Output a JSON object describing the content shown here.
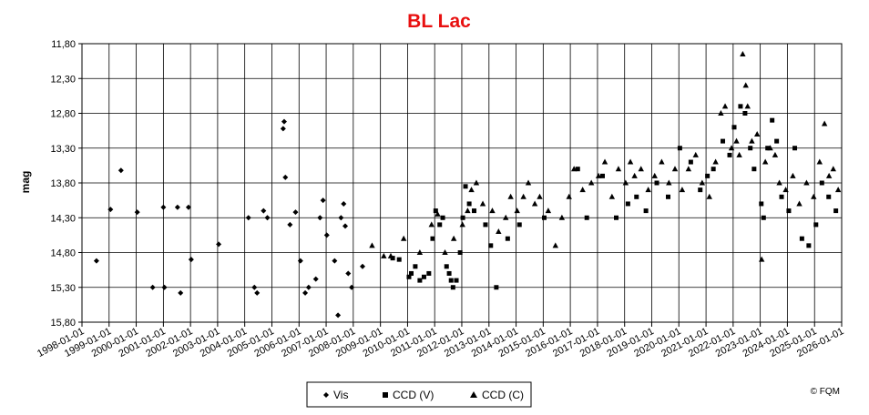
{
  "chart_data": {
    "type": "scatter",
    "title": "BL Lac",
    "ylabel": "mag",
    "xlabel": "",
    "y_inverted": true,
    "ylim": [
      11.8,
      15.8
    ],
    "yticks": [
      "11,80",
      "12,30",
      "12,80",
      "13,30",
      "13,80",
      "14,30",
      "14,80",
      "15,30",
      "15,80"
    ],
    "xlim": [
      "1998-01-01",
      "2026-01-01"
    ],
    "xticks": [
      "1998-01-01",
      "1999-01-01",
      "2000-01-01",
      "2001-01-01",
      "2002-01-01",
      "2003-01-01",
      "2004-01-01",
      "2005-01-01",
      "2006-01-01",
      "2007-01-01",
      "2008-01-01",
      "2009-01-01",
      "2010-01-01",
      "2011-01-01",
      "2012-01-01",
      "2013-01-01",
      "2014-01-01",
      "2015-01-01",
      "2016-01-01",
      "2017-01-01",
      "2018-01-01",
      "2019-01-01",
      "2020-01-01",
      "2021-01-01",
      "2022-01-01",
      "2023-01-01",
      "2024-01-01",
      "2025-01-01",
      "2026-01-01"
    ],
    "grid": true,
    "legend_position": "bottom-center",
    "series": [
      {
        "name": "Vis",
        "marker": "diamond",
        "points": [
          [
            "1998-07-15",
            14.92
          ],
          [
            "1999-01-20",
            14.18
          ],
          [
            "1999-06-10",
            13.62
          ],
          [
            "2000-01-15",
            14.22
          ],
          [
            "2000-08-10",
            15.3
          ],
          [
            "2001-01-01",
            14.15
          ],
          [
            "2001-01-15",
            15.3
          ],
          [
            "2001-07-10",
            14.15
          ],
          [
            "2001-08-20",
            15.38
          ],
          [
            "2001-12-05",
            14.15
          ],
          [
            "2002-01-10",
            14.9
          ],
          [
            "2003-01-15",
            14.68
          ],
          [
            "2004-02-20",
            14.3
          ],
          [
            "2004-05-10",
            15.3
          ],
          [
            "2004-06-15",
            15.38
          ],
          [
            "2004-09-10",
            14.2
          ],
          [
            "2004-11-01",
            14.3
          ],
          [
            "2005-06-01",
            13.02
          ],
          [
            "2005-06-15",
            12.92
          ],
          [
            "2005-07-01",
            13.72
          ],
          [
            "2005-09-01",
            14.4
          ],
          [
            "2005-11-15",
            14.22
          ],
          [
            "2006-01-20",
            14.92
          ],
          [
            "2006-03-25",
            15.38
          ],
          [
            "2006-05-10",
            15.3
          ],
          [
            "2006-08-15",
            15.18
          ],
          [
            "2006-10-10",
            14.3
          ],
          [
            "2006-11-20",
            14.05
          ],
          [
            "2007-01-10",
            14.55
          ],
          [
            "2007-04-25",
            14.92
          ],
          [
            "2007-06-10",
            15.7
          ],
          [
            "2007-07-20",
            14.3
          ],
          [
            "2007-08-25",
            14.1
          ],
          [
            "2007-09-15",
            14.42
          ],
          [
            "2007-10-25",
            15.1
          ],
          [
            "2007-12-10",
            15.3
          ],
          [
            "2008-05-05",
            15.0
          ]
        ]
      },
      {
        "name": "CCD (V)",
        "marker": "square",
        "points": [
          [
            "2009-06-15",
            14.88
          ],
          [
            "2009-09-10",
            14.9
          ],
          [
            "2010-01-20",
            15.15
          ],
          [
            "2010-02-20",
            15.1
          ],
          [
            "2010-04-15",
            15.0
          ],
          [
            "2010-06-15",
            15.2
          ],
          [
            "2010-08-10",
            15.15
          ],
          [
            "2010-10-15",
            15.1
          ],
          [
            "2010-12-05",
            14.6
          ],
          [
            "2011-01-15",
            14.2
          ],
          [
            "2011-03-10",
            14.4
          ],
          [
            "2011-04-20",
            14.3
          ],
          [
            "2011-06-10",
            15.0
          ],
          [
            "2011-07-15",
            15.1
          ],
          [
            "2011-08-10",
            15.2
          ],
          [
            "2011-09-05",
            15.3
          ],
          [
            "2011-10-20",
            15.2
          ],
          [
            "2011-12-10",
            14.8
          ],
          [
            "2012-01-15",
            14.3
          ],
          [
            "2012-02-20",
            13.85
          ],
          [
            "2012-04-10",
            14.1
          ],
          [
            "2012-06-15",
            14.2
          ],
          [
            "2012-11-15",
            14.4
          ],
          [
            "2013-01-25",
            14.7
          ],
          [
            "2013-04-10",
            15.3
          ],
          [
            "2013-09-10",
            14.6
          ],
          [
            "2014-02-15",
            14.4
          ],
          [
            "2015-01-15",
            14.3
          ],
          [
            "2016-04-10",
            13.6
          ],
          [
            "2016-08-10",
            14.3
          ],
          [
            "2017-03-10",
            13.7
          ],
          [
            "2017-09-10",
            14.3
          ],
          [
            "2018-02-15",
            14.1
          ],
          [
            "2018-06-10",
            14.0
          ],
          [
            "2018-10-15",
            14.2
          ],
          [
            "2019-03-10",
            13.8
          ],
          [
            "2019-08-10",
            14.0
          ],
          [
            "2020-01-15",
            13.3
          ],
          [
            "2020-06-10",
            13.5
          ],
          [
            "2020-10-15",
            13.9
          ],
          [
            "2021-01-20",
            13.7
          ],
          [
            "2021-04-10",
            13.6
          ],
          [
            "2021-08-15",
            13.2
          ],
          [
            "2021-11-15",
            13.4
          ],
          [
            "2022-01-15",
            13.0
          ],
          [
            "2022-04-10",
            12.7
          ],
          [
            "2022-06-10",
            12.8
          ],
          [
            "2022-08-20",
            13.3
          ],
          [
            "2022-10-10",
            13.6
          ],
          [
            "2023-01-15",
            14.1
          ],
          [
            "2023-02-15",
            14.3
          ],
          [
            "2023-04-10",
            13.3
          ],
          [
            "2023-06-10",
            12.9
          ],
          [
            "2023-08-10",
            13.2
          ],
          [
            "2023-10-15",
            14.0
          ],
          [
            "2024-01-20",
            14.2
          ],
          [
            "2024-04-10",
            13.3
          ],
          [
            "2024-07-15",
            14.6
          ],
          [
            "2024-10-15",
            14.7
          ],
          [
            "2025-01-20",
            14.4
          ],
          [
            "2025-04-10",
            13.8
          ],
          [
            "2025-07-10",
            14.0
          ],
          [
            "2025-10-15",
            14.2
          ]
        ]
      },
      {
        "name": "CCD (C)",
        "marker": "triangle",
        "points": [
          [
            "2008-09-10",
            14.7
          ],
          [
            "2009-02-15",
            14.85
          ],
          [
            "2009-05-20",
            14.85
          ],
          [
            "2009-11-10",
            14.6
          ],
          [
            "2010-06-15",
            14.8
          ],
          [
            "2010-11-20",
            14.4
          ],
          [
            "2011-02-10",
            14.25
          ],
          [
            "2011-05-20",
            14.8
          ],
          [
            "2011-09-15",
            14.6
          ],
          [
            "2012-01-10",
            14.4
          ],
          [
            "2012-03-20",
            14.2
          ],
          [
            "2012-05-10",
            13.9
          ],
          [
            "2012-07-15",
            13.8
          ],
          [
            "2012-10-10",
            14.1
          ],
          [
            "2013-02-15",
            14.2
          ],
          [
            "2013-05-10",
            14.5
          ],
          [
            "2013-08-15",
            14.3
          ],
          [
            "2013-10-20",
            14.0
          ],
          [
            "2014-01-15",
            14.2
          ],
          [
            "2014-04-10",
            14.0
          ],
          [
            "2014-06-15",
            13.8
          ],
          [
            "2014-09-10",
            14.1
          ],
          [
            "2014-11-15",
            14.0
          ],
          [
            "2015-03-10",
            14.2
          ],
          [
            "2015-06-15",
            14.7
          ],
          [
            "2015-09-10",
            14.3
          ],
          [
            "2015-12-15",
            14.0
          ],
          [
            "2016-02-20",
            13.6
          ],
          [
            "2016-06-15",
            13.9
          ],
          [
            "2016-10-10",
            13.8
          ],
          [
            "2017-01-15",
            13.7
          ],
          [
            "2017-04-10",
            13.5
          ],
          [
            "2017-07-15",
            14.0
          ],
          [
            "2017-10-10",
            13.6
          ],
          [
            "2018-01-15",
            13.8
          ],
          [
            "2018-03-20",
            13.5
          ],
          [
            "2018-05-15",
            13.7
          ],
          [
            "2018-08-10",
            13.6
          ],
          [
            "2018-11-15",
            13.9
          ],
          [
            "2019-02-10",
            13.7
          ],
          [
            "2019-05-15",
            13.5
          ],
          [
            "2019-08-20",
            13.8
          ],
          [
            "2019-11-10",
            13.6
          ],
          [
            "2020-02-15",
            13.9
          ],
          [
            "2020-05-10",
            13.6
          ],
          [
            "2020-08-15",
            13.4
          ],
          [
            "2020-11-10",
            13.8
          ],
          [
            "2021-02-15",
            14.0
          ],
          [
            "2021-05-10",
            13.5
          ],
          [
            "2021-07-20",
            12.8
          ],
          [
            "2021-09-15",
            12.7
          ],
          [
            "2021-12-10",
            13.3
          ],
          [
            "2022-02-15",
            13.2
          ],
          [
            "2022-03-25",
            13.4
          ],
          [
            "2022-05-10",
            11.95
          ],
          [
            "2022-06-20",
            12.4
          ],
          [
            "2022-07-15",
            12.7
          ],
          [
            "2022-09-10",
            13.2
          ],
          [
            "2022-11-20",
            13.1
          ],
          [
            "2023-01-20",
            14.9
          ],
          [
            "2023-03-10",
            13.5
          ],
          [
            "2023-05-15",
            13.3
          ],
          [
            "2023-07-20",
            13.4
          ],
          [
            "2023-09-15",
            13.8
          ],
          [
            "2023-12-10",
            13.9
          ],
          [
            "2024-03-15",
            13.7
          ],
          [
            "2024-06-10",
            14.1
          ],
          [
            "2024-09-15",
            13.8
          ],
          [
            "2024-12-20",
            14.0
          ],
          [
            "2025-03-10",
            13.5
          ],
          [
            "2025-05-15",
            12.95
          ],
          [
            "2025-07-15",
            13.7
          ],
          [
            "2025-09-10",
            13.6
          ],
          [
            "2025-11-15",
            13.9
          ]
        ]
      }
    ],
    "copyright": "© FQM"
  }
}
